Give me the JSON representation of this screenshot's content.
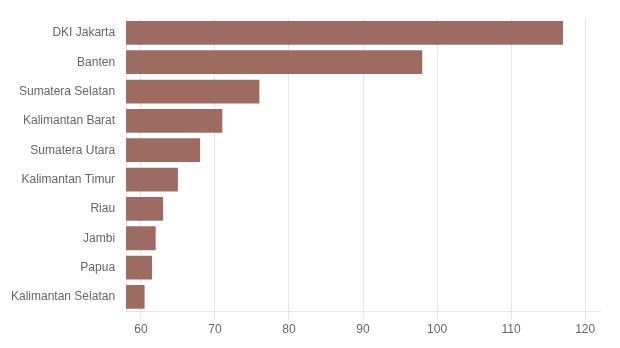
{
  "chart_data": {
    "type": "bar",
    "orientation": "horizontal",
    "categories": [
      "DKI Jakarta",
      "Banten",
      "Sumatera Selatan",
      "Kalimantan Barat",
      "Sumatera Utara",
      "Kalimantan Timur",
      "Riau",
      "Jambi",
      "Papua",
      "Kalimantan Selatan"
    ],
    "values": [
      117,
      98,
      76,
      71,
      68,
      65,
      63,
      62,
      61.5,
      60.5
    ],
    "color": "#9e6b63",
    "xlim": [
      58,
      122
    ],
    "xticks": [
      60,
      70,
      80,
      90,
      100,
      110,
      120
    ],
    "grid": true
  }
}
